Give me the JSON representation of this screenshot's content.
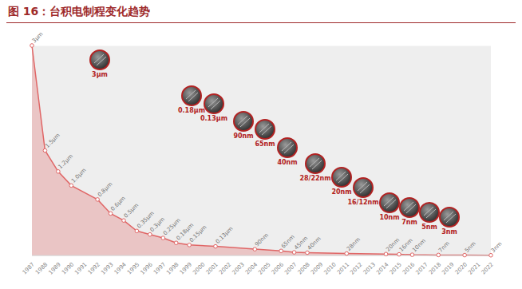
{
  "chart_data": {
    "type": "area",
    "title": "图 16：台积电制程变化趋势",
    "x": [
      1987,
      1988,
      1989,
      1990,
      1992,
      1993,
      1994,
      1995,
      1996,
      1997,
      1998,
      1999,
      2001,
      2004,
      2006,
      2007,
      2008,
      2011,
      2014,
      2015,
      2016,
      2018,
      2020,
      2022
    ],
    "values": [
      3,
      1.5,
      1.2,
      1.0,
      0.8,
      0.6,
      0.5,
      0.35,
      0.3,
      0.25,
      0.18,
      0.15,
      0.13,
      0.09,
      0.065,
      0.045,
      0.04,
      0.028,
      0.02,
      0.016,
      0.01,
      0.007,
      0.005,
      0.003
    ],
    "value_labels": [
      "3μm",
      "1.5μm",
      "1.2μm",
      "1.0μm",
      "0.8μm",
      "0.6μm",
      "0.5μm",
      "0.35μm",
      "0.3μm",
      "0.25μm",
      "0.18μm",
      "0.15μm",
      "0.13μm",
      "90nm",
      "65nm",
      "45nm",
      "40nm",
      "28nm",
      "20nm",
      "16nm",
      "10nm",
      "7nm",
      "5nm",
      "3nm"
    ],
    "color": "#e06666",
    "marker": "o",
    "data_labels": true,
    "xlim": [
      1987,
      2022
    ],
    "xticks": [
      1987,
      1988,
      1989,
      1990,
      1991,
      1992,
      1993,
      1994,
      1995,
      1996,
      1997,
      1998,
      1999,
      2000,
      2001,
      2002,
      2003,
      2004,
      2005,
      2006,
      2007,
      2008,
      2009,
      2010,
      2011,
      2012,
      2013,
      2014,
      2015,
      2016,
      2017,
      2018,
      2019,
      2020,
      2021,
      2022
    ],
    "ylim": [
      0,
      3
    ],
    "yticks": [
      0,
      0.5,
      1,
      1.5,
      2,
      2.5,
      3
    ],
    "grid": true,
    "tick_labels": "x",
    "annotations": [
      "3μm",
      "0.18μm",
      "0.13μm",
      "90nm",
      "65nm",
      "40nm",
      "28/22nm",
      "20nm",
      "16/12nm",
      "10nm",
      "7nm",
      "5nm",
      "3nm"
    ]
  }
}
